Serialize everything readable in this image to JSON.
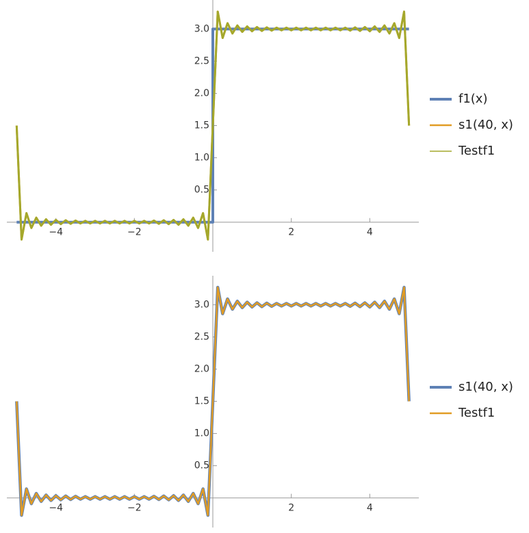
{
  "chart_data": [
    {
      "type": "line",
      "xlim": [
        -5.25,
        5.25
      ],
      "ylim": [
        -0.46,
        3.45
      ],
      "xticks": [
        {
          "value": -4,
          "label": "−4"
        },
        {
          "value": -2,
          "label": "−2"
        },
        2,
        4
      ],
      "yticks": [
        0.5,
        {
          "value": 1,
          "label": "1.0"
        },
        1.5,
        {
          "value": 2,
          "label": "2.0"
        },
        2.5,
        {
          "value": 3,
          "label": "3.0"
        }
      ],
      "series": [
        {
          "name": "f1(x)",
          "color": "#5e81b5",
          "x": [
            -5,
            0,
            0,
            5
          ],
          "values": [
            0,
            0,
            3,
            3
          ]
        },
        {
          "name": "s1(40, x)",
          "color": "#e19c24",
          "x": [
            -5,
            -4.875,
            -4.75,
            -4.625,
            -4.5,
            -4.375,
            -4.25,
            -4.125,
            -4,
            -3.875,
            -3.75,
            -3.625,
            -3.5,
            -3.375,
            -3.25,
            -3.125,
            -3,
            -2.875,
            -2.75,
            -2.625,
            -2.5,
            -2.375,
            -2.25,
            -2.125,
            -2,
            -1.875,
            -1.75,
            -1.625,
            -1.5,
            -1.375,
            -1.25,
            -1.125,
            -1,
            -0.875,
            -0.75,
            -0.625,
            -0.5,
            -0.375,
            -0.25,
            -0.125,
            0,
            0.125,
            0.25,
            0.375,
            0.5,
            0.625,
            0.75,
            0.875,
            1,
            1.125,
            1.25,
            1.375,
            1.5,
            1.625,
            1.75,
            1.875,
            2,
            2.125,
            2.25,
            2.375,
            2.5,
            2.625,
            2.75,
            2.875,
            3,
            3.125,
            3.25,
            3.375,
            3.5,
            3.625,
            3.75,
            3.875,
            4,
            4.125,
            4.25,
            4.375,
            4.5,
            4.625,
            4.75,
            4.875,
            5
          ],
          "values": [
            1.5,
            -0.27,
            0.14,
            -0.09,
            0.07,
            -0.055,
            0.045,
            -0.04,
            0.035,
            -0.03,
            0.03,
            -0.025,
            0.025,
            -0.02,
            0.02,
            -0.02,
            0.02,
            -0.02,
            0.02,
            -0.02,
            0.02,
            -0.02,
            0.02,
            -0.02,
            0.02,
            -0.02,
            0.02,
            -0.02,
            0.025,
            -0.025,
            0.03,
            -0.03,
            0.035,
            -0.04,
            0.045,
            -0.055,
            0.07,
            -0.09,
            0.14,
            -0.27,
            1.5,
            3.27,
            2.86,
            3.09,
            2.93,
            3.055,
            2.955,
            3.04,
            2.965,
            3.03,
            2.97,
            3.025,
            2.975,
            3.02,
            2.98,
            3.02,
            2.98,
            3.02,
            2.98,
            3.02,
            2.98,
            3.02,
            2.98,
            3.02,
            2.98,
            3.02,
            2.98,
            3.02,
            2.975,
            3.025,
            2.97,
            3.03,
            2.965,
            3.04,
            2.955,
            3.055,
            2.93,
            3.09,
            2.86,
            3.27,
            1.5
          ]
        },
        {
          "name": "Testf1",
          "color": "#a4a82c",
          "x": [
            -5,
            -4.875,
            -4.75,
            -4.625,
            -4.5,
            -4.375,
            -4.25,
            -4.125,
            -4,
            -3.875,
            -3.75,
            -3.625,
            -3.5,
            -3.375,
            -3.25,
            -3.125,
            -3,
            -2.875,
            -2.75,
            -2.625,
            -2.5,
            -2.375,
            -2.25,
            -2.125,
            -2,
            -1.875,
            -1.75,
            -1.625,
            -1.5,
            -1.375,
            -1.25,
            -1.125,
            -1,
            -0.875,
            -0.75,
            -0.625,
            -0.5,
            -0.375,
            -0.25,
            -0.125,
            0,
            0.125,
            0.25,
            0.375,
            0.5,
            0.625,
            0.75,
            0.875,
            1,
            1.125,
            1.25,
            1.375,
            1.5,
            1.625,
            1.75,
            1.875,
            2,
            2.125,
            2.25,
            2.375,
            2.5,
            2.625,
            2.75,
            2.875,
            3,
            3.125,
            3.25,
            3.375,
            3.5,
            3.625,
            3.75,
            3.875,
            4,
            4.125,
            4.25,
            4.375,
            4.5,
            4.625,
            4.75,
            4.875,
            5
          ],
          "values": [
            1.5,
            -0.27,
            0.14,
            -0.09,
            0.07,
            -0.055,
            0.045,
            -0.04,
            0.035,
            -0.03,
            0.03,
            -0.025,
            0.025,
            -0.02,
            0.02,
            -0.02,
            0.02,
            -0.02,
            0.02,
            -0.02,
            0.02,
            -0.02,
            0.02,
            -0.02,
            0.02,
            -0.02,
            0.02,
            -0.02,
            0.025,
            -0.025,
            0.03,
            -0.03,
            0.035,
            -0.04,
            0.045,
            -0.055,
            0.07,
            -0.09,
            0.14,
            -0.27,
            1.5,
            3.27,
            2.86,
            3.09,
            2.93,
            3.055,
            2.955,
            3.04,
            2.965,
            3.03,
            2.97,
            3.025,
            2.975,
            3.02,
            2.98,
            3.02,
            2.98,
            3.02,
            2.98,
            3.02,
            2.98,
            3.02,
            2.98,
            3.02,
            2.98,
            3.02,
            2.98,
            3.02,
            2.975,
            3.025,
            2.97,
            3.03,
            2.965,
            3.04,
            2.955,
            3.055,
            2.93,
            3.09,
            2.86,
            3.27,
            1.5
          ]
        }
      ]
    },
    {
      "type": "line",
      "xlim": [
        -5.25,
        5.25
      ],
      "ylim": [
        -0.46,
        3.45
      ],
      "xticks": [
        {
          "value": -4,
          "label": "−4"
        },
        {
          "value": -2,
          "label": "−2"
        },
        2,
        4
      ],
      "yticks": [
        0.5,
        {
          "value": 1,
          "label": "1.0"
        },
        1.5,
        {
          "value": 2,
          "label": "2.0"
        },
        2.5,
        {
          "value": 3,
          "label": "3.0"
        }
      ],
      "series": [
        {
          "name": "s1(40, x)",
          "color": "#5e81b5",
          "x": [
            -5,
            -4.875,
            -4.75,
            -4.625,
            -4.5,
            -4.375,
            -4.25,
            -4.125,
            -4,
            -3.875,
            -3.75,
            -3.625,
            -3.5,
            -3.375,
            -3.25,
            -3.125,
            -3,
            -2.875,
            -2.75,
            -2.625,
            -2.5,
            -2.375,
            -2.25,
            -2.125,
            -2,
            -1.875,
            -1.75,
            -1.625,
            -1.5,
            -1.375,
            -1.25,
            -1.125,
            -1,
            -0.875,
            -0.75,
            -0.625,
            -0.5,
            -0.375,
            -0.25,
            -0.125,
            0,
            0.125,
            0.25,
            0.375,
            0.5,
            0.625,
            0.75,
            0.875,
            1,
            1.125,
            1.25,
            1.375,
            1.5,
            1.625,
            1.75,
            1.875,
            2,
            2.125,
            2.25,
            2.375,
            2.5,
            2.625,
            2.75,
            2.875,
            3,
            3.125,
            3.25,
            3.375,
            3.5,
            3.625,
            3.75,
            3.875,
            4,
            4.125,
            4.25,
            4.375,
            4.5,
            4.625,
            4.75,
            4.875,
            5
          ],
          "values": [
            1.5,
            -0.27,
            0.14,
            -0.09,
            0.07,
            -0.055,
            0.045,
            -0.04,
            0.035,
            -0.03,
            0.03,
            -0.025,
            0.025,
            -0.02,
            0.02,
            -0.02,
            0.02,
            -0.02,
            0.02,
            -0.02,
            0.02,
            -0.02,
            0.02,
            -0.02,
            0.02,
            -0.02,
            0.02,
            -0.02,
            0.025,
            -0.025,
            0.03,
            -0.03,
            0.035,
            -0.04,
            0.045,
            -0.055,
            0.07,
            -0.09,
            0.14,
            -0.27,
            1.5,
            3.27,
            2.86,
            3.09,
            2.93,
            3.055,
            2.955,
            3.04,
            2.965,
            3.03,
            2.97,
            3.025,
            2.975,
            3.02,
            2.98,
            3.02,
            2.98,
            3.02,
            2.98,
            3.02,
            2.98,
            3.02,
            2.98,
            3.02,
            2.98,
            3.02,
            2.98,
            3.02,
            2.975,
            3.025,
            2.97,
            3.03,
            2.965,
            3.04,
            2.955,
            3.055,
            2.93,
            3.09,
            2.86,
            3.27,
            1.5
          ]
        },
        {
          "name": "Testf1",
          "color": "#e19c24",
          "x": [
            -5,
            -4.875,
            -4.75,
            -4.625,
            -4.5,
            -4.375,
            -4.25,
            -4.125,
            -4,
            -3.875,
            -3.75,
            -3.625,
            -3.5,
            -3.375,
            -3.25,
            -3.125,
            -3,
            -2.875,
            -2.75,
            -2.625,
            -2.5,
            -2.375,
            -2.25,
            -2.125,
            -2,
            -1.875,
            -1.75,
            -1.625,
            -1.5,
            -1.375,
            -1.25,
            -1.125,
            -1,
            -0.875,
            -0.75,
            -0.625,
            -0.5,
            -0.375,
            -0.25,
            -0.125,
            0,
            0.125,
            0.25,
            0.375,
            0.5,
            0.625,
            0.75,
            0.875,
            1,
            1.125,
            1.25,
            1.375,
            1.5,
            1.625,
            1.75,
            1.875,
            2,
            2.125,
            2.25,
            2.375,
            2.5,
            2.625,
            2.75,
            2.875,
            3,
            3.125,
            3.25,
            3.375,
            3.5,
            3.625,
            3.75,
            3.875,
            4,
            4.125,
            4.25,
            4.375,
            4.5,
            4.625,
            4.75,
            4.875,
            5
          ],
          "values": [
            1.5,
            -0.27,
            0.14,
            -0.09,
            0.07,
            -0.055,
            0.045,
            -0.04,
            0.035,
            -0.03,
            0.03,
            -0.025,
            0.025,
            -0.02,
            0.02,
            -0.02,
            0.02,
            -0.02,
            0.02,
            -0.02,
            0.02,
            -0.02,
            0.02,
            -0.02,
            0.02,
            -0.02,
            0.02,
            -0.02,
            0.025,
            -0.025,
            0.03,
            -0.03,
            0.035,
            -0.04,
            0.045,
            -0.055,
            0.07,
            -0.09,
            0.14,
            -0.27,
            1.5,
            3.27,
            2.86,
            3.09,
            2.93,
            3.055,
            2.955,
            3.04,
            2.965,
            3.03,
            2.97,
            3.025,
            2.975,
            3.02,
            2.98,
            3.02,
            2.98,
            3.02,
            2.98,
            3.02,
            2.98,
            3.02,
            2.98,
            3.02,
            2.98,
            3.02,
            2.98,
            3.02,
            2.975,
            3.025,
            2.97,
            3.03,
            2.965,
            3.04,
            2.955,
            3.055,
            2.93,
            3.09,
            2.86,
            3.27,
            1.5
          ]
        }
      ]
    }
  ]
}
